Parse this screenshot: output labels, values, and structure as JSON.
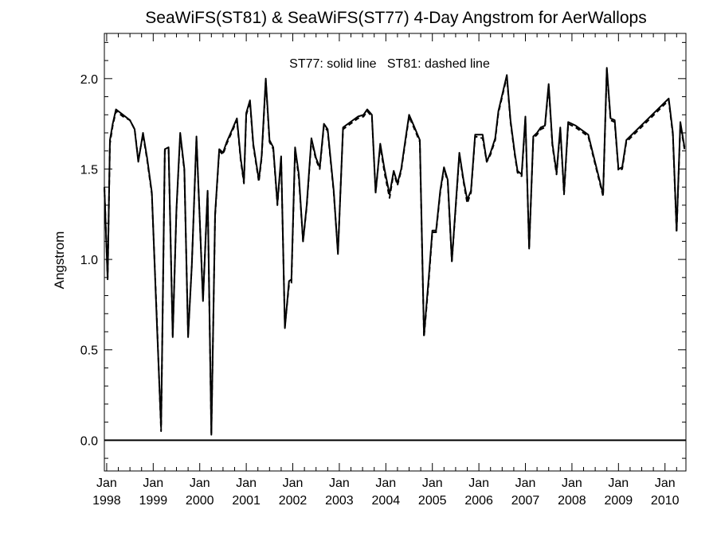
{
  "chart_data": {
    "type": "line",
    "title": "SeaWiFS(ST81) & SeaWiFS(ST77) 4-Day Angstrom for AerWallops",
    "annotation": "ST77: solid line   ST81: dashed line",
    "xlabel": "",
    "ylabel": "Angstrom",
    "xlim": [
      1997.95,
      2010.45
    ],
    "ylim": [
      -0.17,
      2.25
    ],
    "yticks": [
      0.0,
      0.5,
      1.0,
      1.5,
      2.0
    ],
    "ytick_labels": [
      "0.0",
      "0.5",
      "1.0",
      "1.5",
      "2.0"
    ],
    "xticks": [
      {
        "value": 1998,
        "month": "Jan",
        "year": "1998"
      },
      {
        "value": 1999,
        "month": "Jan",
        "year": "1999"
      },
      {
        "value": 2000,
        "month": "Jan",
        "year": "2000"
      },
      {
        "value": 2001,
        "month": "Jan",
        "year": "2001"
      },
      {
        "value": 2002,
        "month": "Jan",
        "year": "2002"
      },
      {
        "value": 2003,
        "month": "Jan",
        "year": "2003"
      },
      {
        "value": 2004,
        "month": "Jan",
        "year": "2004"
      },
      {
        "value": 2005,
        "month": "Jan",
        "year": "2005"
      },
      {
        "value": 2006,
        "month": "Jan",
        "year": "2006"
      },
      {
        "value": 2007,
        "month": "Jan",
        "year": "2007"
      },
      {
        "value": 2008,
        "month": "Jan",
        "year": "2008"
      },
      {
        "value": 2009,
        "month": "Jan",
        "year": "2009"
      },
      {
        "value": 2010,
        "month": "Jan",
        "year": "2010"
      }
    ],
    "reference_line": 0.0,
    "grid": false,
    "series": [
      {
        "name": "ST77",
        "style": "solid",
        "color": "#000000",
        "points": [
          [
            1997.95,
            1.4
          ],
          [
            1998.02,
            0.89
          ],
          [
            1998.07,
            1.66
          ],
          [
            1998.13,
            1.75
          ],
          [
            1998.2,
            1.83
          ],
          [
            1998.35,
            1.8
          ],
          [
            1998.5,
            1.77
          ],
          [
            1998.6,
            1.72
          ],
          [
            1998.68,
            1.54
          ],
          [
            1998.78,
            1.7
          ],
          [
            1998.87,
            1.56
          ],
          [
            1998.97,
            1.37
          ],
          [
            1999.08,
            0.64
          ],
          [
            1999.17,
            0.07
          ],
          [
            1999.25,
            1.61
          ],
          [
            1999.33,
            1.62
          ],
          [
            1999.42,
            0.57
          ],
          [
            1999.5,
            1.28
          ],
          [
            1999.58,
            1.7
          ],
          [
            1999.67,
            1.5
          ],
          [
            1999.75,
            0.57
          ],
          [
            1999.83,
            0.97
          ],
          [
            1999.93,
            1.68
          ],
          [
            2000.07,
            0.77
          ],
          [
            2000.17,
            1.38
          ],
          [
            2000.25,
            0.03
          ],
          [
            2000.33,
            1.25
          ],
          [
            2000.42,
            1.61
          ],
          [
            2000.5,
            1.59
          ],
          [
            2000.58,
            1.65
          ],
          [
            2000.7,
            1.72
          ],
          [
            2000.8,
            1.78
          ],
          [
            2000.88,
            1.56
          ],
          [
            2000.95,
            1.43
          ],
          [
            2001.0,
            1.81
          ],
          [
            2001.08,
            1.88
          ],
          [
            2001.15,
            1.64
          ],
          [
            2001.27,
            1.44
          ],
          [
            2001.33,
            1.57
          ],
          [
            2001.42,
            2.0
          ],
          [
            2001.5,
            1.66
          ],
          [
            2001.58,
            1.62
          ],
          [
            2001.67,
            1.31
          ],
          [
            2001.75,
            1.57
          ],
          [
            2001.83,
            0.62
          ],
          [
            2001.92,
            0.88
          ],
          [
            2001.97,
            0.89
          ],
          [
            2002.05,
            1.62
          ],
          [
            2002.13,
            1.47
          ],
          [
            2002.22,
            1.1
          ],
          [
            2002.3,
            1.3
          ],
          [
            2002.4,
            1.67
          ],
          [
            2002.5,
            1.56
          ],
          [
            2002.58,
            1.51
          ],
          [
            2002.67,
            1.75
          ],
          [
            2002.75,
            1.72
          ],
          [
            2002.88,
            1.38
          ],
          [
            2002.97,
            1.03
          ],
          [
            2003.08,
            1.73
          ],
          [
            2003.4,
            1.79
          ],
          [
            2003.52,
            1.8
          ],
          [
            2003.6,
            1.83
          ],
          [
            2003.7,
            1.8
          ],
          [
            2003.78,
            1.37
          ],
          [
            2003.88,
            1.64
          ],
          [
            2003.97,
            1.5
          ],
          [
            2004.08,
            1.36
          ],
          [
            2004.17,
            1.49
          ],
          [
            2004.25,
            1.42
          ],
          [
            2004.33,
            1.5
          ],
          [
            2004.42,
            1.66
          ],
          [
            2004.5,
            1.8
          ],
          [
            2004.6,
            1.74
          ],
          [
            2004.73,
            1.66
          ],
          [
            2004.82,
            0.58
          ],
          [
            2004.92,
            0.89
          ],
          [
            2005.0,
            1.16
          ],
          [
            2005.08,
            1.16
          ],
          [
            2005.17,
            1.38
          ],
          [
            2005.25,
            1.51
          ],
          [
            2005.33,
            1.44
          ],
          [
            2005.42,
            0.99
          ],
          [
            2005.5,
            1.29
          ],
          [
            2005.58,
            1.59
          ],
          [
            2005.67,
            1.44
          ],
          [
            2005.75,
            1.33
          ],
          [
            2005.83,
            1.38
          ],
          [
            2005.92,
            1.69
          ],
          [
            2006.08,
            1.69
          ],
          [
            2006.17,
            1.54
          ],
          [
            2006.25,
            1.59
          ],
          [
            2006.35,
            1.67
          ],
          [
            2006.42,
            1.82
          ],
          [
            2006.6,
            2.02
          ],
          [
            2006.68,
            1.77
          ],
          [
            2006.77,
            1.59
          ],
          [
            2006.83,
            1.49
          ],
          [
            2006.92,
            1.47
          ],
          [
            2007.0,
            1.79
          ],
          [
            2007.08,
            1.06
          ],
          [
            2007.17,
            1.68
          ],
          [
            2007.25,
            1.7
          ],
          [
            2007.33,
            1.73
          ],
          [
            2007.42,
            1.74
          ],
          [
            2007.5,
            1.97
          ],
          [
            2007.58,
            1.64
          ],
          [
            2007.67,
            1.48
          ],
          [
            2007.75,
            1.73
          ],
          [
            2007.83,
            1.37
          ],
          [
            2007.92,
            1.76
          ],
          [
            2008.08,
            1.74
          ],
          [
            2008.35,
            1.69
          ],
          [
            2008.67,
            1.36
          ],
          [
            2008.75,
            2.06
          ],
          [
            2008.83,
            1.78
          ],
          [
            2008.92,
            1.77
          ],
          [
            2009.0,
            1.5
          ],
          [
            2009.08,
            1.51
          ],
          [
            2009.17,
            1.66
          ],
          [
            2010.08,
            1.89
          ],
          [
            2010.17,
            1.7
          ],
          [
            2010.25,
            1.16
          ],
          [
            2010.33,
            1.76
          ],
          [
            2010.42,
            1.62
          ]
        ]
      },
      {
        "name": "ST81",
        "style": "dashed",
        "color": "#000000",
        "points": [
          [
            1997.95,
            1.4
          ],
          [
            1998.02,
            0.9
          ],
          [
            1998.07,
            1.64
          ],
          [
            1998.13,
            1.74
          ],
          [
            1998.2,
            1.82
          ],
          [
            1998.35,
            1.79
          ],
          [
            1998.5,
            1.77
          ],
          [
            1998.6,
            1.72
          ],
          [
            1998.68,
            1.55
          ],
          [
            1998.78,
            1.69
          ],
          [
            1998.87,
            1.55
          ],
          [
            1998.97,
            1.36
          ],
          [
            1999.08,
            0.66
          ],
          [
            1999.17,
            0.05
          ],
          [
            1999.25,
            1.6
          ],
          [
            1999.33,
            1.61
          ],
          [
            1999.42,
            0.58
          ],
          [
            1999.5,
            1.27
          ],
          [
            1999.58,
            1.69
          ],
          [
            1999.67,
            1.49
          ],
          [
            1999.75,
            0.58
          ],
          [
            1999.83,
            0.97
          ],
          [
            1999.93,
            1.67
          ],
          [
            2000.07,
            0.78
          ],
          [
            2000.17,
            1.37
          ],
          [
            2000.25,
            0.04
          ],
          [
            2000.33,
            1.24
          ],
          [
            2000.42,
            1.6
          ],
          [
            2000.5,
            1.58
          ],
          [
            2000.58,
            1.64
          ],
          [
            2000.7,
            1.71
          ],
          [
            2000.8,
            1.77
          ],
          [
            2000.88,
            1.55
          ],
          [
            2000.95,
            1.42
          ],
          [
            2001.0,
            1.8
          ],
          [
            2001.08,
            1.87
          ],
          [
            2001.15,
            1.63
          ],
          [
            2001.27,
            1.43
          ],
          [
            2001.33,
            1.56
          ],
          [
            2001.42,
            1.99
          ],
          [
            2001.5,
            1.65
          ],
          [
            2001.58,
            1.61
          ],
          [
            2001.67,
            1.3
          ],
          [
            2001.75,
            1.56
          ],
          [
            2001.83,
            0.63
          ],
          [
            2001.92,
            0.86
          ],
          [
            2001.97,
            0.87
          ],
          [
            2002.05,
            1.61
          ],
          [
            2002.13,
            1.45
          ],
          [
            2002.22,
            1.1
          ],
          [
            2002.3,
            1.29
          ],
          [
            2002.4,
            1.66
          ],
          [
            2002.5,
            1.55
          ],
          [
            2002.58,
            1.5
          ],
          [
            2002.67,
            1.74
          ],
          [
            2002.75,
            1.71
          ],
          [
            2002.88,
            1.37
          ],
          [
            2002.97,
            1.04
          ],
          [
            2003.08,
            1.72
          ],
          [
            2003.4,
            1.78
          ],
          [
            2003.52,
            1.79
          ],
          [
            2003.6,
            1.82
          ],
          [
            2003.7,
            1.79
          ],
          [
            2003.78,
            1.37
          ],
          [
            2003.88,
            1.63
          ],
          [
            2003.97,
            1.48
          ],
          [
            2004.08,
            1.34
          ],
          [
            2004.17,
            1.48
          ],
          [
            2004.25,
            1.41
          ],
          [
            2004.33,
            1.49
          ],
          [
            2004.42,
            1.65
          ],
          [
            2004.5,
            1.79
          ],
          [
            2004.6,
            1.73
          ],
          [
            2004.73,
            1.65
          ],
          [
            2004.82,
            0.57
          ],
          [
            2004.92,
            0.87
          ],
          [
            2005.0,
            1.15
          ],
          [
            2005.08,
            1.15
          ],
          [
            2005.17,
            1.37
          ],
          [
            2005.25,
            1.5
          ],
          [
            2005.33,
            1.43
          ],
          [
            2005.42,
            0.99
          ],
          [
            2005.5,
            1.28
          ],
          [
            2005.58,
            1.58
          ],
          [
            2005.67,
            1.43
          ],
          [
            2005.75,
            1.31
          ],
          [
            2005.83,
            1.37
          ],
          [
            2005.92,
            1.68
          ],
          [
            2006.08,
            1.67
          ],
          [
            2006.17,
            1.54
          ],
          [
            2006.25,
            1.58
          ],
          [
            2006.35,
            1.66
          ],
          [
            2006.42,
            1.81
          ],
          [
            2006.6,
            2.01
          ],
          [
            2006.68,
            1.76
          ],
          [
            2006.77,
            1.58
          ],
          [
            2006.83,
            1.48
          ],
          [
            2006.92,
            1.46
          ],
          [
            2007.0,
            1.78
          ],
          [
            2007.08,
            1.06
          ],
          [
            2007.17,
            1.67
          ],
          [
            2007.25,
            1.69
          ],
          [
            2007.33,
            1.72
          ],
          [
            2007.42,
            1.73
          ],
          [
            2007.5,
            1.96
          ],
          [
            2007.58,
            1.63
          ],
          [
            2007.67,
            1.47
          ],
          [
            2007.75,
            1.72
          ],
          [
            2007.83,
            1.36
          ],
          [
            2007.92,
            1.75
          ],
          [
            2008.08,
            1.73
          ],
          [
            2008.35,
            1.68
          ],
          [
            2008.67,
            1.35
          ],
          [
            2008.75,
            2.05
          ],
          [
            2008.83,
            1.77
          ],
          [
            2008.92,
            1.76
          ],
          [
            2009.0,
            1.49
          ],
          [
            2009.08,
            1.5
          ],
          [
            2009.17,
            1.65
          ],
          [
            2010.08,
            1.88
          ],
          [
            2010.17,
            1.69
          ],
          [
            2010.25,
            1.15
          ],
          [
            2010.33,
            1.75
          ],
          [
            2010.42,
            1.61
          ]
        ]
      }
    ]
  }
}
